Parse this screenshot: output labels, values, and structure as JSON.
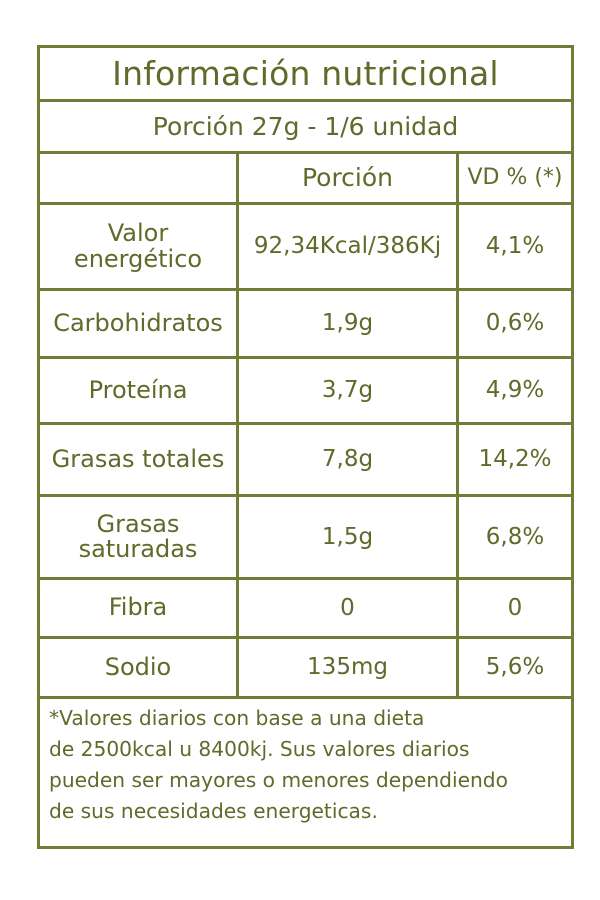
{
  "title": "Información nutricional",
  "serving": "Porción 27g - 1/6 unidad",
  "table": {
    "headers": [
      "",
      "Porción",
      "VD % (*)"
    ],
    "rows": [
      {
        "nutrient": "Valor energético",
        "portion": "92,34Kcal/386Kj",
        "dv": "4,1%"
      },
      {
        "nutrient": "Carbohidratos",
        "portion": "1,9g",
        "dv": "0,6%"
      },
      {
        "nutrient": "Proteína",
        "portion": "3,7g",
        "dv": "4,9%"
      },
      {
        "nutrient": "Grasas totales",
        "portion": "7,8g",
        "dv": "14,2%"
      },
      {
        "nutrient": "Grasas saturadas",
        "portion": "1,5g",
        "dv": "6,8%"
      },
      {
        "nutrient": "Fibra",
        "portion": "0",
        "dv": "0"
      },
      {
        "nutrient": "Sodio",
        "portion": "135mg",
        "dv": "5,6%"
      }
    ]
  },
  "footnote": {
    "lines": [
      "*Valores diarios con base a una dieta",
      "de 2500kcal u 8400kj. Sus valores diarios",
      "pueden ser mayores o menores dependiendo",
      "de sus necesidades energeticas."
    ]
  },
  "colors": {
    "text": "#5f6b2a",
    "border": "#6f7d36",
    "background": "#ffffff"
  }
}
